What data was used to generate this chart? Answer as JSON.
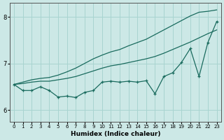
{
  "xlabel": "Humidex (Indice chaleur)",
  "background_color": "#cce8e6",
  "grid_color": "#a8d4d0",
  "line_color": "#1a6b5e",
  "xlim": [
    -0.5,
    23.5
  ],
  "ylim": [
    5.75,
    8.3
  ],
  "yticks": [
    6,
    7,
    8
  ],
  "xticks": [
    0,
    1,
    2,
    3,
    4,
    5,
    6,
    7,
    8,
    9,
    10,
    11,
    12,
    13,
    14,
    15,
    16,
    17,
    18,
    19,
    20,
    21,
    22,
    23
  ],
  "x_data": [
    0,
    1,
    2,
    3,
    4,
    5,
    6,
    7,
    8,
    9,
    10,
    11,
    12,
    13,
    14,
    15,
    16,
    17,
    18,
    19,
    20,
    21,
    22,
    23
  ],
  "y_main": [
    6.55,
    6.42,
    6.42,
    6.5,
    6.42,
    6.28,
    6.3,
    6.27,
    6.38,
    6.42,
    6.6,
    6.62,
    6.6,
    6.62,
    6.6,
    6.63,
    6.35,
    6.72,
    6.8,
    7.02,
    7.32,
    6.72,
    7.45,
    7.9
  ],
  "y_line1": [
    6.55,
    6.57,
    6.6,
    6.62,
    6.62,
    6.65,
    6.68,
    6.72,
    6.78,
    6.84,
    6.9,
    6.95,
    6.98,
    7.02,
    7.06,
    7.1,
    7.15,
    7.22,
    7.3,
    7.38,
    7.46,
    7.55,
    7.64,
    7.72
  ],
  "y_line2": [
    6.55,
    6.6,
    6.65,
    6.68,
    6.7,
    6.75,
    6.82,
    6.9,
    7.0,
    7.1,
    7.18,
    7.25,
    7.3,
    7.38,
    7.45,
    7.52,
    7.62,
    7.72,
    7.82,
    7.92,
    8.02,
    8.1,
    8.12,
    8.15
  ]
}
